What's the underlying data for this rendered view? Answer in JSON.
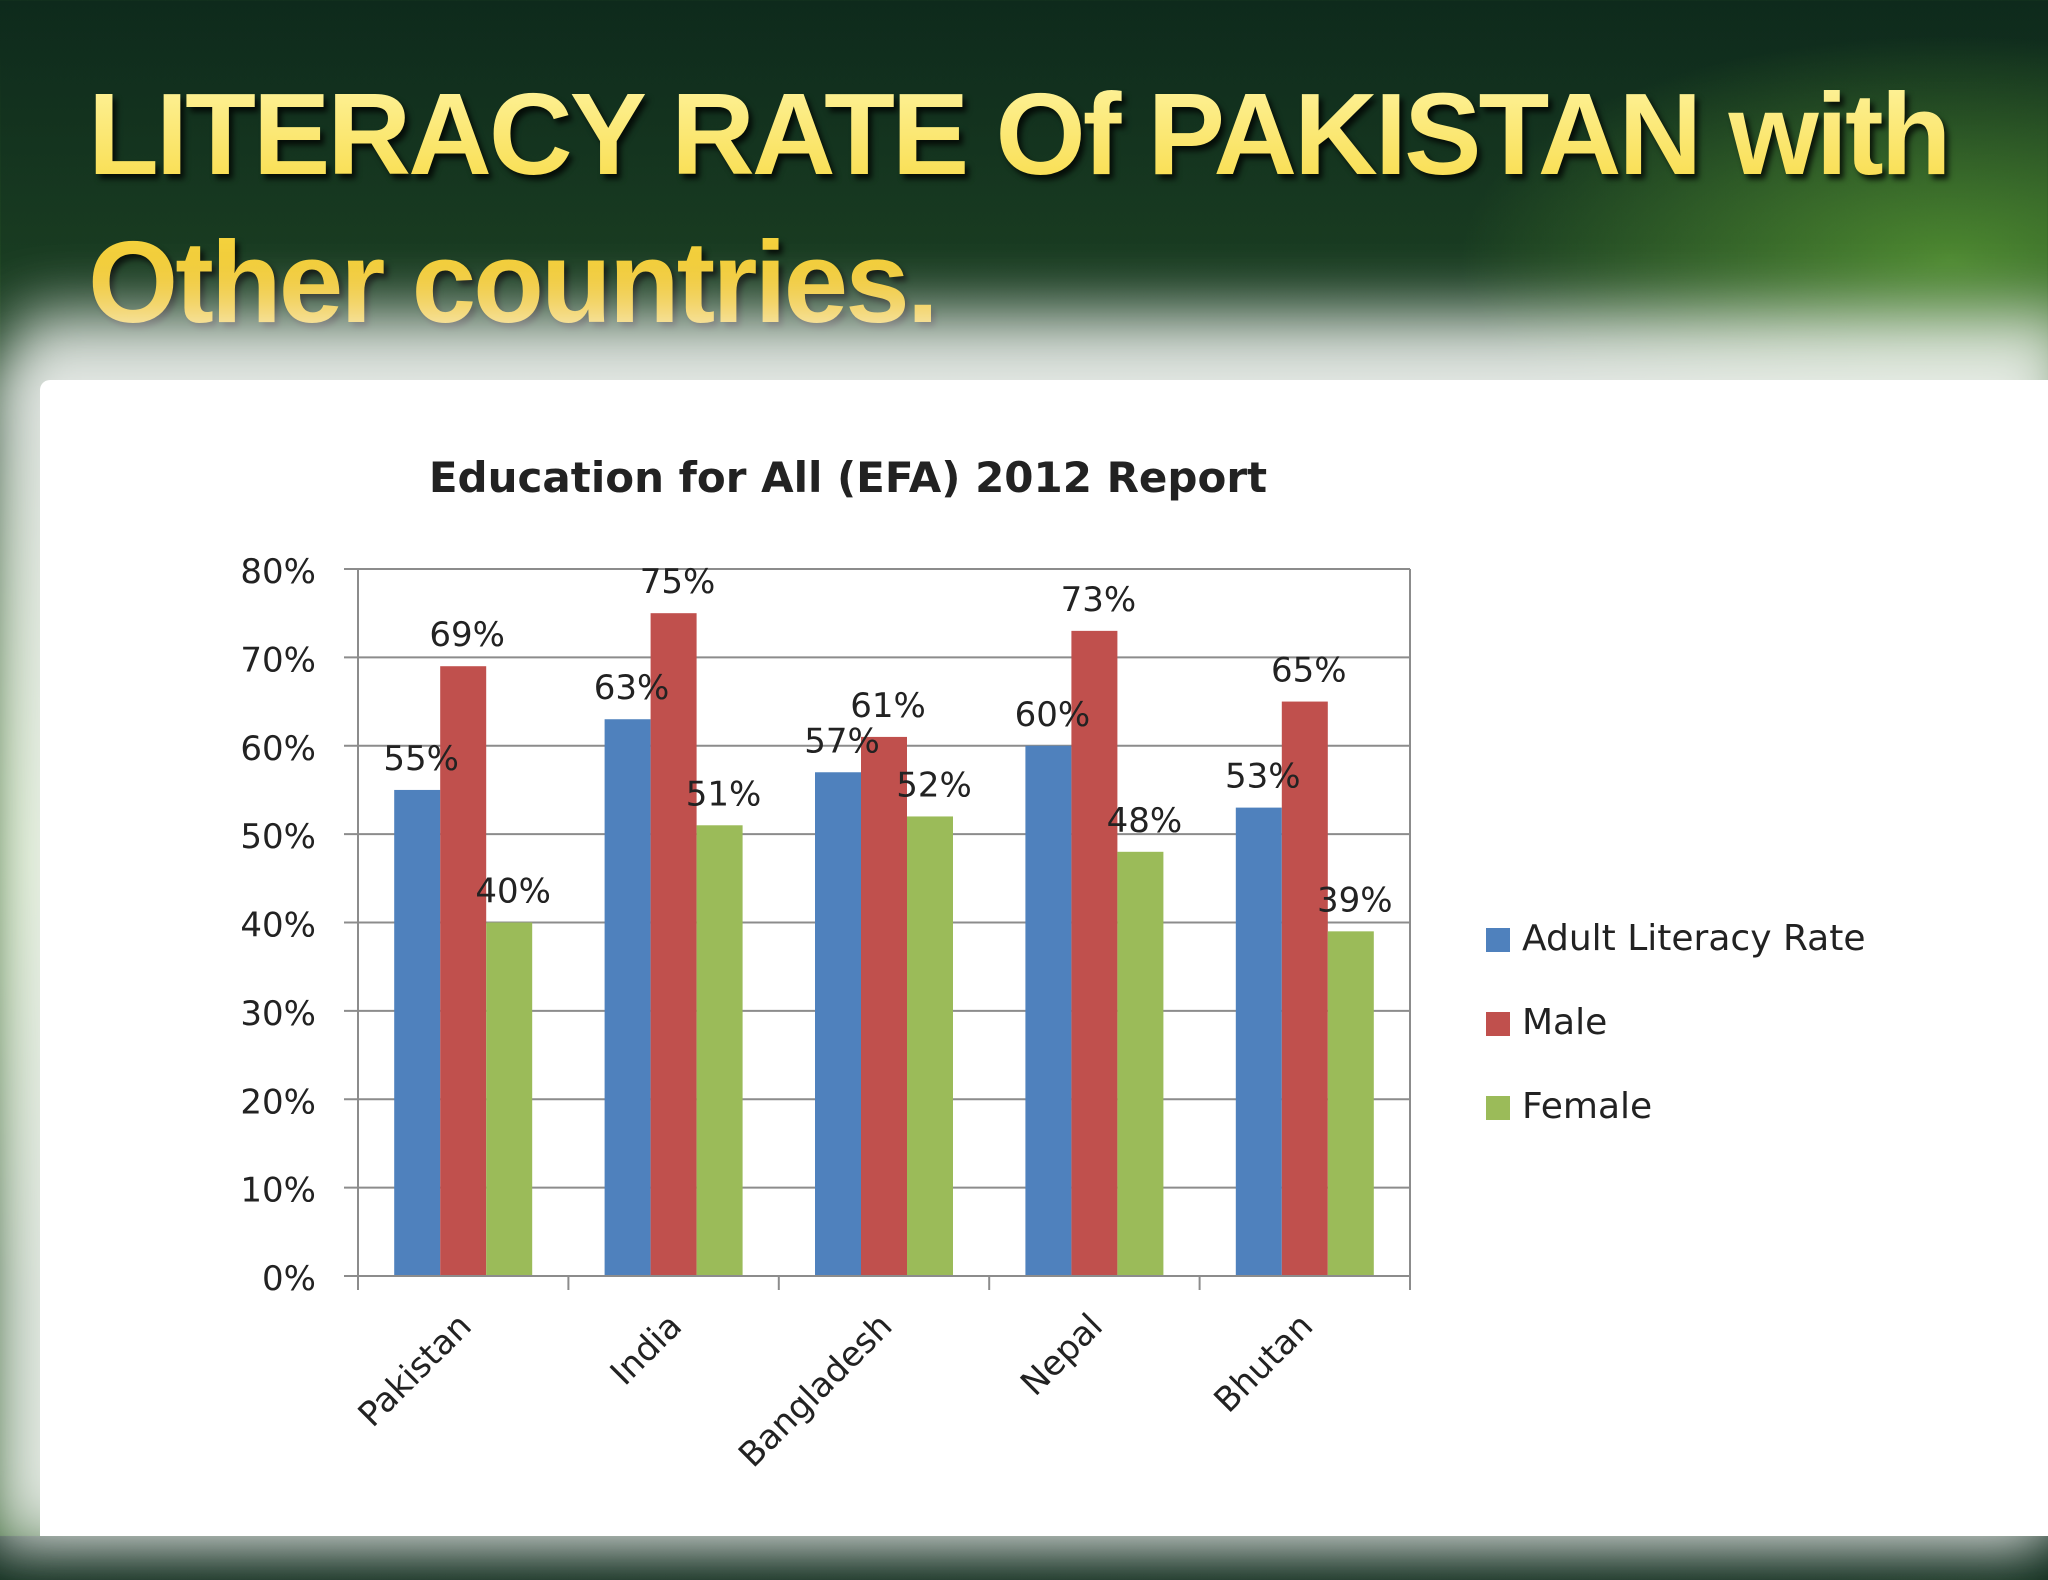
{
  "slide": {
    "title_line1": "LITERACY RATE Of PAKISTAN with",
    "title_line2": "Other countries."
  },
  "chart_data": {
    "type": "bar",
    "title": "Education for All (EFA) 2012 Report",
    "categories": [
      "Pakistan",
      "India",
      "Bangladesh",
      "Nepal",
      "Bhutan"
    ],
    "series": [
      {
        "name": "Adult Literacy Rate",
        "values": [
          55,
          63,
          57,
          60,
          53
        ],
        "color": "#4f81bd"
      },
      {
        "name": "Male",
        "values": [
          69,
          75,
          61,
          73,
          65
        ],
        "color": "#c0504d"
      },
      {
        "name": "Female",
        "values": [
          40,
          51,
          52,
          48,
          39
        ],
        "color": "#9bbb59"
      }
    ],
    "y_unit": "%",
    "ylim": [
      0,
      80
    ],
    "y_ticks": [
      "0%",
      "10%",
      "20%",
      "30%",
      "40%",
      "50%",
      "60%",
      "70%",
      "80%"
    ],
    "data_labels": [
      [
        "55%",
        "63%",
        "57%",
        "60%",
        "53%"
      ],
      [
        "69%",
        "75%",
        "61%",
        "73%",
        "65%"
      ],
      [
        "40%",
        "51%",
        "52%",
        "48%",
        "39%"
      ]
    ],
    "grid": true,
    "legend_position": "right"
  }
}
